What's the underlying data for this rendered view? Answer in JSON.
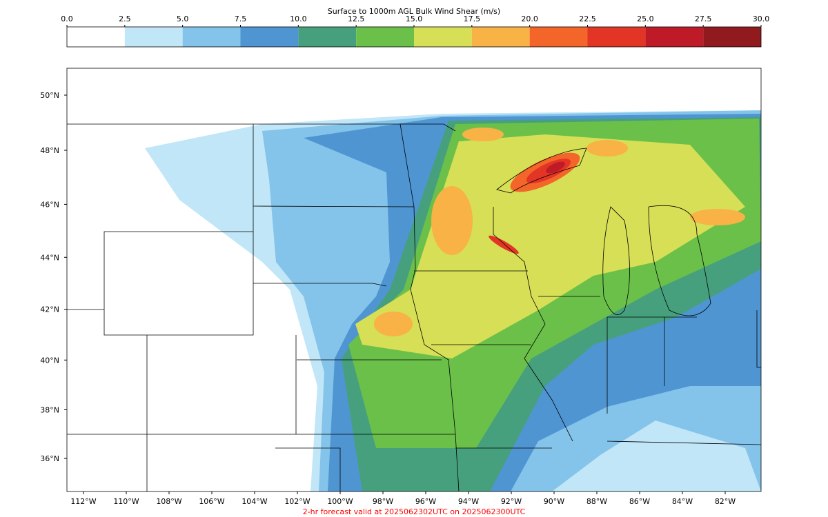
{
  "colorbar": {
    "title": "Surface to 1000m AGL Bulk Wind Shear (m/s)",
    "ticks": [
      {
        "value": 0,
        "label": "0.0"
      },
      2.5,
      {
        "value": 5,
        "label": "5.0"
      },
      7.5,
      {
        "value": 10,
        "label": "10.0"
      },
      12.5,
      {
        "value": 15,
        "label": "15.0"
      },
      17.5,
      {
        "value": 20,
        "label": "20.0"
      },
      22.5,
      {
        "value": 25,
        "label": "25.0"
      },
      27.5,
      {
        "value": 30,
        "label": "30.0"
      }
    ],
    "colors": [
      "#ffffff",
      "#c0e6f7",
      "#84c3ea",
      "#4f95d2",
      "#46a07d",
      "#6bc04a",
      "#d6df56",
      "#f8b246",
      "#f46529",
      "#e23526",
      "#be1a27",
      "#901a1d"
    ]
  },
  "map": {
    "lat_ticks": [
      {
        "value": 50,
        "label": "50°N"
      },
      {
        "value": 48,
        "label": "48°N"
      },
      {
        "value": 46,
        "label": "46°N"
      },
      {
        "value": 44,
        "label": "44°N"
      },
      {
        "value": 42,
        "label": "42°N"
      },
      {
        "value": 40,
        "label": "40°N"
      },
      {
        "value": 38,
        "label": "38°N"
      },
      {
        "value": 36,
        "label": "36°N"
      }
    ],
    "lon_ticks": [
      {
        "value": -112,
        "label": "112°W"
      },
      {
        "value": -110,
        "label": "110°W"
      },
      {
        "value": -108,
        "label": "108°W"
      },
      {
        "value": -106,
        "label": "106°W"
      },
      {
        "value": -104,
        "label": "104°W"
      },
      {
        "value": -102,
        "label": "102°W"
      },
      {
        "value": -100,
        "label": "100°W"
      },
      {
        "value": -98,
        "label": "98°W"
      },
      {
        "value": -96,
        "label": "96°W"
      },
      {
        "value": -94,
        "label": "94°W"
      },
      {
        "value": -92,
        "label": "92°W"
      },
      {
        "value": -90,
        "label": "90°W"
      },
      {
        "value": -88,
        "label": "88°W"
      },
      {
        "value": -86,
        "label": "86°W"
      },
      {
        "value": -84,
        "label": "84°W"
      },
      {
        "value": -82,
        "label": "82°W"
      }
    ]
  },
  "footer": "2-hr forecast valid at 2025062302UTC on 2025062300UTC"
}
